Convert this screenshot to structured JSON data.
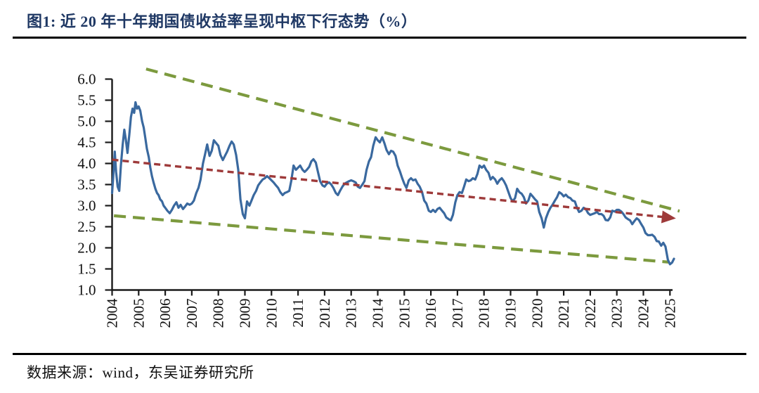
{
  "figure": {
    "title": "图1:  近 20 年十年期国债收益率呈现中枢下行态势（%）",
    "source_note": "数据来源：wind，东吴证券研究所"
  },
  "colors": {
    "title_navy": "#1f3864",
    "series_blue": "#3a699f",
    "trend_red": "#9e3a3a",
    "envelope_green": "#7c9a3e",
    "axis_black": "#1a1a1a",
    "rule_black": "#000000"
  },
  "chart_data": {
    "type": "line",
    "title": "近20年十年期国债收益率呈现中枢下行态势",
    "unit": "%",
    "grid": false,
    "legend": "none",
    "y_axis": {
      "range": [
        1.0,
        6.0
      ],
      "tick_labels": [
        "6.0",
        "5.5",
        "5.0",
        "4.5",
        "4.0",
        "3.5",
        "3.0",
        "2.5",
        "2.0",
        "1.5",
        "1.0"
      ]
    },
    "x_axis": {
      "range": [
        2004,
        2025.4
      ],
      "tick_labels": [
        "2004",
        "2005",
        "2006",
        "2007",
        "2008",
        "2009",
        "2010",
        "2011",
        "2012",
        "2013",
        "2014",
        "2015",
        "2016",
        "2017",
        "2018",
        "2019",
        "2020",
        "2021",
        "2022",
        "2023",
        "2024",
        "2025"
      ],
      "label_rotation": -90
    },
    "series": [
      {
        "name": "10年期国债收益率",
        "color": "#3a699f",
        "points": [
          [
            2004.0,
            3.3
          ],
          [
            2004.06,
            3.85
          ],
          [
            2004.1,
            4.28
          ],
          [
            2004.15,
            3.8
          ],
          [
            2004.21,
            3.45
          ],
          [
            2004.27,
            3.35
          ],
          [
            2004.33,
            3.95
          ],
          [
            2004.4,
            4.45
          ],
          [
            2004.46,
            4.8
          ],
          [
            2004.52,
            4.55
          ],
          [
            2004.58,
            4.25
          ],
          [
            2004.65,
            4.7
          ],
          [
            2004.71,
            5.1
          ],
          [
            2004.77,
            5.3
          ],
          [
            2004.83,
            5.2
          ],
          [
            2004.88,
            5.45
          ],
          [
            2004.94,
            5.3
          ],
          [
            2005.0,
            5.35
          ],
          [
            2005.06,
            5.25
          ],
          [
            2005.13,
            5.0
          ],
          [
            2005.19,
            4.85
          ],
          [
            2005.25,
            4.6
          ],
          [
            2005.31,
            4.35
          ],
          [
            2005.38,
            4.15
          ],
          [
            2005.44,
            3.9
          ],
          [
            2005.5,
            3.7
          ],
          [
            2005.56,
            3.55
          ],
          [
            2005.63,
            3.4
          ],
          [
            2005.69,
            3.3
          ],
          [
            2005.75,
            3.25
          ],
          [
            2005.81,
            3.15
          ],
          [
            2005.88,
            3.1
          ],
          [
            2005.94,
            3.0
          ],
          [
            2006.0,
            2.95
          ],
          [
            2006.08,
            2.88
          ],
          [
            2006.17,
            2.82
          ],
          [
            2006.25,
            2.9
          ],
          [
            2006.33,
            3.0
          ],
          [
            2006.42,
            3.08
          ],
          [
            2006.5,
            2.95
          ],
          [
            2006.58,
            3.02
          ],
          [
            2006.67,
            2.92
          ],
          [
            2006.75,
            2.98
          ],
          [
            2006.83,
            3.05
          ],
          [
            2006.92,
            3.02
          ],
          [
            2007.0,
            3.05
          ],
          [
            2007.08,
            3.12
          ],
          [
            2007.17,
            3.3
          ],
          [
            2007.25,
            3.42
          ],
          [
            2007.33,
            3.62
          ],
          [
            2007.42,
            4.0
          ],
          [
            2007.5,
            4.22
          ],
          [
            2007.58,
            4.45
          ],
          [
            2007.67,
            4.18
          ],
          [
            2007.75,
            4.3
          ],
          [
            2007.83,
            4.55
          ],
          [
            2007.92,
            4.48
          ],
          [
            2008.0,
            4.42
          ],
          [
            2008.08,
            4.2
          ],
          [
            2008.17,
            4.08
          ],
          [
            2008.25,
            4.18
          ],
          [
            2008.33,
            4.28
          ],
          [
            2008.42,
            4.42
          ],
          [
            2008.5,
            4.52
          ],
          [
            2008.58,
            4.45
          ],
          [
            2008.67,
            4.2
          ],
          [
            2008.75,
            3.85
          ],
          [
            2008.83,
            3.15
          ],
          [
            2008.92,
            2.8
          ],
          [
            2009.0,
            2.7
          ],
          [
            2009.08,
            3.1
          ],
          [
            2009.17,
            3.0
          ],
          [
            2009.25,
            3.12
          ],
          [
            2009.33,
            3.25
          ],
          [
            2009.42,
            3.35
          ],
          [
            2009.5,
            3.48
          ],
          [
            2009.58,
            3.55
          ],
          [
            2009.67,
            3.62
          ],
          [
            2009.75,
            3.65
          ],
          [
            2009.83,
            3.7
          ],
          [
            2009.92,
            3.65
          ],
          [
            2010.0,
            3.6
          ],
          [
            2010.08,
            3.55
          ],
          [
            2010.17,
            3.48
          ],
          [
            2010.25,
            3.42
          ],
          [
            2010.33,
            3.32
          ],
          [
            2010.42,
            3.25
          ],
          [
            2010.5,
            3.3
          ],
          [
            2010.58,
            3.32
          ],
          [
            2010.67,
            3.35
          ],
          [
            2010.75,
            3.6
          ],
          [
            2010.83,
            3.95
          ],
          [
            2010.92,
            3.85
          ],
          [
            2011.0,
            3.9
          ],
          [
            2011.08,
            3.95
          ],
          [
            2011.17,
            3.85
          ],
          [
            2011.25,
            3.8
          ],
          [
            2011.33,
            3.85
          ],
          [
            2011.42,
            3.92
          ],
          [
            2011.5,
            4.05
          ],
          [
            2011.58,
            4.1
          ],
          [
            2011.67,
            4.02
          ],
          [
            2011.75,
            3.8
          ],
          [
            2011.83,
            3.58
          ],
          [
            2011.92,
            3.48
          ],
          [
            2012.0,
            3.45
          ],
          [
            2012.08,
            3.52
          ],
          [
            2012.17,
            3.55
          ],
          [
            2012.25,
            3.5
          ],
          [
            2012.33,
            3.42
          ],
          [
            2012.42,
            3.3
          ],
          [
            2012.5,
            3.25
          ],
          [
            2012.58,
            3.35
          ],
          [
            2012.67,
            3.45
          ],
          [
            2012.75,
            3.52
          ],
          [
            2012.83,
            3.55
          ],
          [
            2012.92,
            3.58
          ],
          [
            2013.0,
            3.6
          ],
          [
            2013.08,
            3.58
          ],
          [
            2013.17,
            3.55
          ],
          [
            2013.25,
            3.45
          ],
          [
            2013.33,
            3.42
          ],
          [
            2013.42,
            3.5
          ],
          [
            2013.5,
            3.58
          ],
          [
            2013.58,
            3.85
          ],
          [
            2013.67,
            4.05
          ],
          [
            2013.75,
            4.15
          ],
          [
            2013.83,
            4.42
          ],
          [
            2013.92,
            4.62
          ],
          [
            2014.0,
            4.55
          ],
          [
            2014.08,
            4.5
          ],
          [
            2014.17,
            4.62
          ],
          [
            2014.25,
            4.48
          ],
          [
            2014.33,
            4.32
          ],
          [
            2014.42,
            4.22
          ],
          [
            2014.5,
            4.3
          ],
          [
            2014.58,
            4.28
          ],
          [
            2014.67,
            4.18
          ],
          [
            2014.75,
            3.95
          ],
          [
            2014.83,
            3.82
          ],
          [
            2014.92,
            3.65
          ],
          [
            2015.0,
            3.52
          ],
          [
            2015.08,
            3.42
          ],
          [
            2015.17,
            3.6
          ],
          [
            2015.25,
            3.65
          ],
          [
            2015.33,
            3.6
          ],
          [
            2015.42,
            3.62
          ],
          [
            2015.5,
            3.52
          ],
          [
            2015.58,
            3.45
          ],
          [
            2015.67,
            3.32
          ],
          [
            2015.75,
            3.12
          ],
          [
            2015.83,
            3.05
          ],
          [
            2015.92,
            2.88
          ],
          [
            2016.0,
            2.85
          ],
          [
            2016.08,
            2.9
          ],
          [
            2016.17,
            2.85
          ],
          [
            2016.25,
            2.92
          ],
          [
            2016.33,
            2.95
          ],
          [
            2016.42,
            2.88
          ],
          [
            2016.5,
            2.82
          ],
          [
            2016.58,
            2.72
          ],
          [
            2016.67,
            2.68
          ],
          [
            2016.75,
            2.65
          ],
          [
            2016.83,
            2.78
          ],
          [
            2016.92,
            3.08
          ],
          [
            2017.0,
            3.25
          ],
          [
            2017.08,
            3.32
          ],
          [
            2017.17,
            3.3
          ],
          [
            2017.25,
            3.45
          ],
          [
            2017.33,
            3.62
          ],
          [
            2017.42,
            3.58
          ],
          [
            2017.5,
            3.6
          ],
          [
            2017.58,
            3.65
          ],
          [
            2017.67,
            3.62
          ],
          [
            2017.75,
            3.75
          ],
          [
            2017.83,
            3.95
          ],
          [
            2017.92,
            3.9
          ],
          [
            2018.0,
            3.95
          ],
          [
            2018.08,
            3.85
          ],
          [
            2018.17,
            3.78
          ],
          [
            2018.25,
            3.62
          ],
          [
            2018.33,
            3.68
          ],
          [
            2018.42,
            3.62
          ],
          [
            2018.5,
            3.52
          ],
          [
            2018.58,
            3.6
          ],
          [
            2018.67,
            3.65
          ],
          [
            2018.75,
            3.58
          ],
          [
            2018.83,
            3.48
          ],
          [
            2018.92,
            3.32
          ],
          [
            2019.0,
            3.18
          ],
          [
            2019.08,
            3.1
          ],
          [
            2019.17,
            3.18
          ],
          [
            2019.25,
            3.4
          ],
          [
            2019.33,
            3.32
          ],
          [
            2019.42,
            3.28
          ],
          [
            2019.5,
            3.2
          ],
          [
            2019.58,
            3.05
          ],
          [
            2019.67,
            3.12
          ],
          [
            2019.75,
            3.28
          ],
          [
            2019.83,
            3.22
          ],
          [
            2019.92,
            3.15
          ],
          [
            2020.0,
            3.1
          ],
          [
            2020.08,
            2.85
          ],
          [
            2020.17,
            2.7
          ],
          [
            2020.25,
            2.48
          ],
          [
            2020.33,
            2.7
          ],
          [
            2020.42,
            2.85
          ],
          [
            2020.5,
            2.95
          ],
          [
            2020.58,
            3.02
          ],
          [
            2020.67,
            3.12
          ],
          [
            2020.75,
            3.2
          ],
          [
            2020.83,
            3.32
          ],
          [
            2020.92,
            3.28
          ],
          [
            2021.0,
            3.22
          ],
          [
            2021.08,
            3.26
          ],
          [
            2021.17,
            3.2
          ],
          [
            2021.25,
            3.18
          ],
          [
            2021.33,
            3.12
          ],
          [
            2021.42,
            3.1
          ],
          [
            2021.5,
            2.95
          ],
          [
            2021.58,
            2.85
          ],
          [
            2021.67,
            2.88
          ],
          [
            2021.75,
            2.95
          ],
          [
            2021.83,
            2.92
          ],
          [
            2021.92,
            2.82
          ],
          [
            2022.0,
            2.78
          ],
          [
            2022.08,
            2.8
          ],
          [
            2022.17,
            2.82
          ],
          [
            2022.25,
            2.85
          ],
          [
            2022.33,
            2.8
          ],
          [
            2022.42,
            2.8
          ],
          [
            2022.5,
            2.76
          ],
          [
            2022.58,
            2.66
          ],
          [
            2022.67,
            2.65
          ],
          [
            2022.75,
            2.72
          ],
          [
            2022.83,
            2.88
          ],
          [
            2022.92,
            2.86
          ],
          [
            2023.0,
            2.9
          ],
          [
            2023.08,
            2.9
          ],
          [
            2023.17,
            2.86
          ],
          [
            2023.25,
            2.8
          ],
          [
            2023.33,
            2.72
          ],
          [
            2023.42,
            2.68
          ],
          [
            2023.5,
            2.65
          ],
          [
            2023.58,
            2.56
          ],
          [
            2023.67,
            2.64
          ],
          [
            2023.75,
            2.7
          ],
          [
            2023.83,
            2.66
          ],
          [
            2023.92,
            2.56
          ],
          [
            2024.0,
            2.48
          ],
          [
            2024.08,
            2.35
          ],
          [
            2024.17,
            2.3
          ],
          [
            2024.25,
            2.3
          ],
          [
            2024.33,
            2.31
          ],
          [
            2024.42,
            2.26
          ],
          [
            2024.5,
            2.16
          ],
          [
            2024.58,
            2.15
          ],
          [
            2024.67,
            2.05
          ],
          [
            2024.75,
            2.12
          ],
          [
            2024.83,
            2.03
          ],
          [
            2024.92,
            1.72
          ],
          [
            2025.0,
            1.61
          ],
          [
            2025.08,
            1.65
          ],
          [
            2025.15,
            1.74
          ]
        ]
      }
    ],
    "annotations": [
      {
        "name": "中枢下行趋势线",
        "kind": "trend",
        "style": "dashed",
        "color": "#9e3a3a",
        "arrow_end": true,
        "from": [
          2004.0,
          4.09
        ],
        "to": [
          2024.75,
          2.73
        ]
      },
      {
        "name": "上轨包络线",
        "kind": "envelope_upper",
        "style": "dashed",
        "color": "#7c9a3e",
        "arrow_end": false,
        "from": [
          2005.28,
          6.24
        ],
        "to": [
          2025.36,
          2.87
        ]
      },
      {
        "name": "下轨包络线",
        "kind": "envelope_lower",
        "style": "dashed",
        "color": "#7c9a3e",
        "arrow_end": false,
        "from": [
          2004.07,
          2.76
        ],
        "to": [
          2024.97,
          1.66
        ]
      }
    ]
  }
}
